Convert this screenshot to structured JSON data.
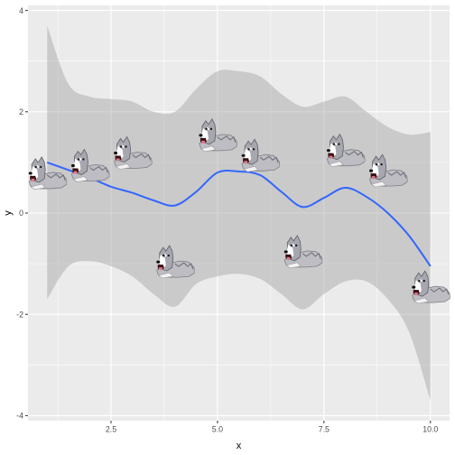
{
  "chart_data": {
    "type": "scatter",
    "title": "",
    "xlabel": "x",
    "ylabel": "y",
    "xlim": [
      0.55,
      10.45
    ],
    "ylim": [
      -4.1,
      4.1
    ],
    "x_ticks": [
      2.5,
      5.0,
      7.5,
      10.0
    ],
    "x_tick_labels": [
      "2.5",
      "5.0",
      "7.5",
      "10.0"
    ],
    "y_ticks": [
      -4,
      -2,
      0,
      2,
      4
    ],
    "y_tick_labels": [
      "-4",
      "-2",
      "0",
      "2",
      "4"
    ],
    "grid": true,
    "marker": "dog-icon",
    "points": [
      {
        "x": 1,
        "y": 0.75
      },
      {
        "x": 2,
        "y": 0.9
      },
      {
        "x": 3,
        "y": 1.15
      },
      {
        "x": 4,
        "y": -1.0
      },
      {
        "x": 5,
        "y": 1.5
      },
      {
        "x": 6,
        "y": 1.1
      },
      {
        "x": 7,
        "y": -0.8
      },
      {
        "x": 8,
        "y": 1.2
      },
      {
        "x": 9,
        "y": 0.8
      },
      {
        "x": 10,
        "y": -1.5
      }
    ],
    "smooth": {
      "color": "#3366FF",
      "x": [
        1,
        1.5,
        2,
        2.5,
        3,
        3.5,
        4,
        4.5,
        5,
        5.5,
        6,
        6.5,
        7,
        7.5,
        8,
        8.5,
        9,
        9.5,
        10
      ],
      "y": [
        1.0,
        0.85,
        0.7,
        0.52,
        0.4,
        0.25,
        0.15,
        0.42,
        0.8,
        0.82,
        0.75,
        0.42,
        0.12,
        0.3,
        0.5,
        0.32,
        0.0,
        -0.45,
        -1.05
      ],
      "ci_upper": [
        3.7,
        2.55,
        2.3,
        2.25,
        2.2,
        2.0,
        2.0,
        2.45,
        2.8,
        2.8,
        2.7,
        2.35,
        2.1,
        2.2,
        2.3,
        2.0,
        1.7,
        1.55,
        1.6
      ],
      "ci_lower": [
        -1.7,
        -1.05,
        -0.95,
        -1.05,
        -1.25,
        -1.6,
        -1.85,
        -1.4,
        -1.25,
        -1.2,
        -1.3,
        -1.6,
        -1.9,
        -1.6,
        -1.35,
        -1.35,
        -1.7,
        -2.35,
        -3.7
      ]
    },
    "colors": {
      "panel": "#EBEBEB",
      "grid": "#FFFFFF",
      "ribbon": "#999999",
      "tick": "#333333"
    }
  }
}
